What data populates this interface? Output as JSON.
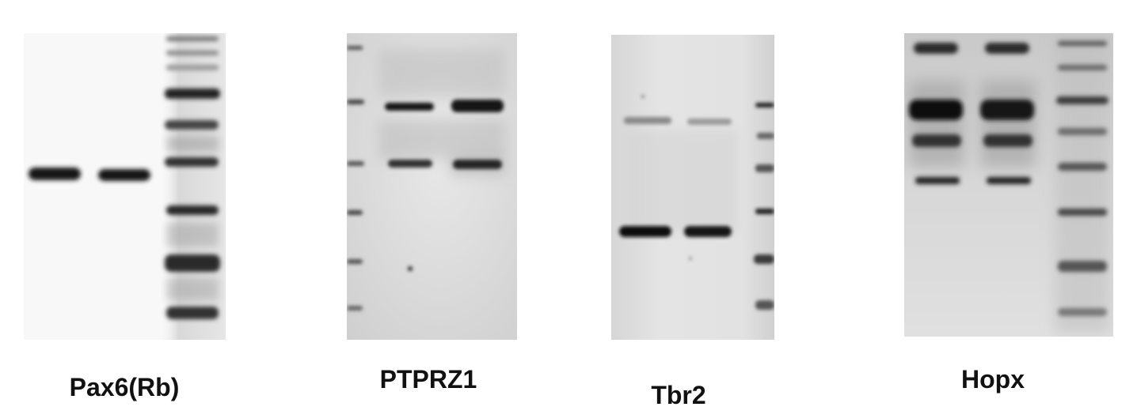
{
  "panels": [
    {
      "id": "pax6",
      "label": "Pax6(Rb)",
      "background": "#f8f8f8"
    },
    {
      "id": "ptprz1",
      "label": "PTPRZ1",
      "background": "#dedede"
    },
    {
      "id": "tbr2",
      "label": "Tbr2",
      "background": "#e2e2e2"
    },
    {
      "id": "hopx",
      "label": "Hopx",
      "background": "#d9d9d9"
    }
  ],
  "colors": {
    "band": "#141414",
    "page": "#ffffff",
    "caption": "#111111"
  }
}
